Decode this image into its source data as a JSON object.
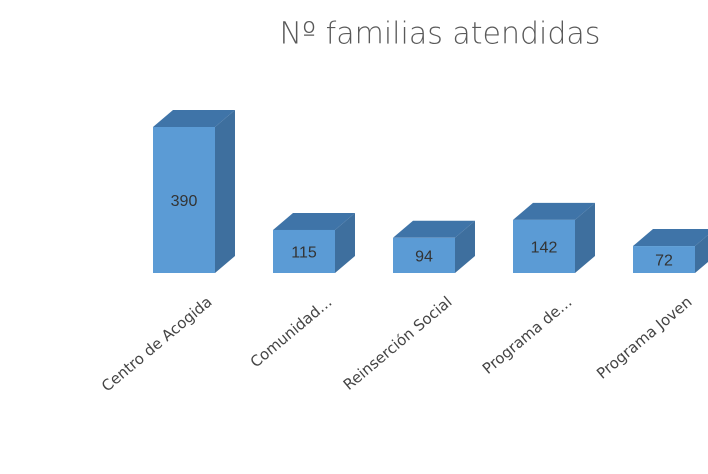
{
  "chart_data": {
    "type": "bar3d",
    "title": "Nº familias atendidas",
    "categories": [
      "Centro de Acogida",
      "Comunidad…",
      "Reinserción Social",
      "Programa de…",
      "Programa Joven"
    ],
    "values": [
      390,
      115,
      94,
      142,
      72
    ],
    "color": "#5b9bd5"
  }
}
